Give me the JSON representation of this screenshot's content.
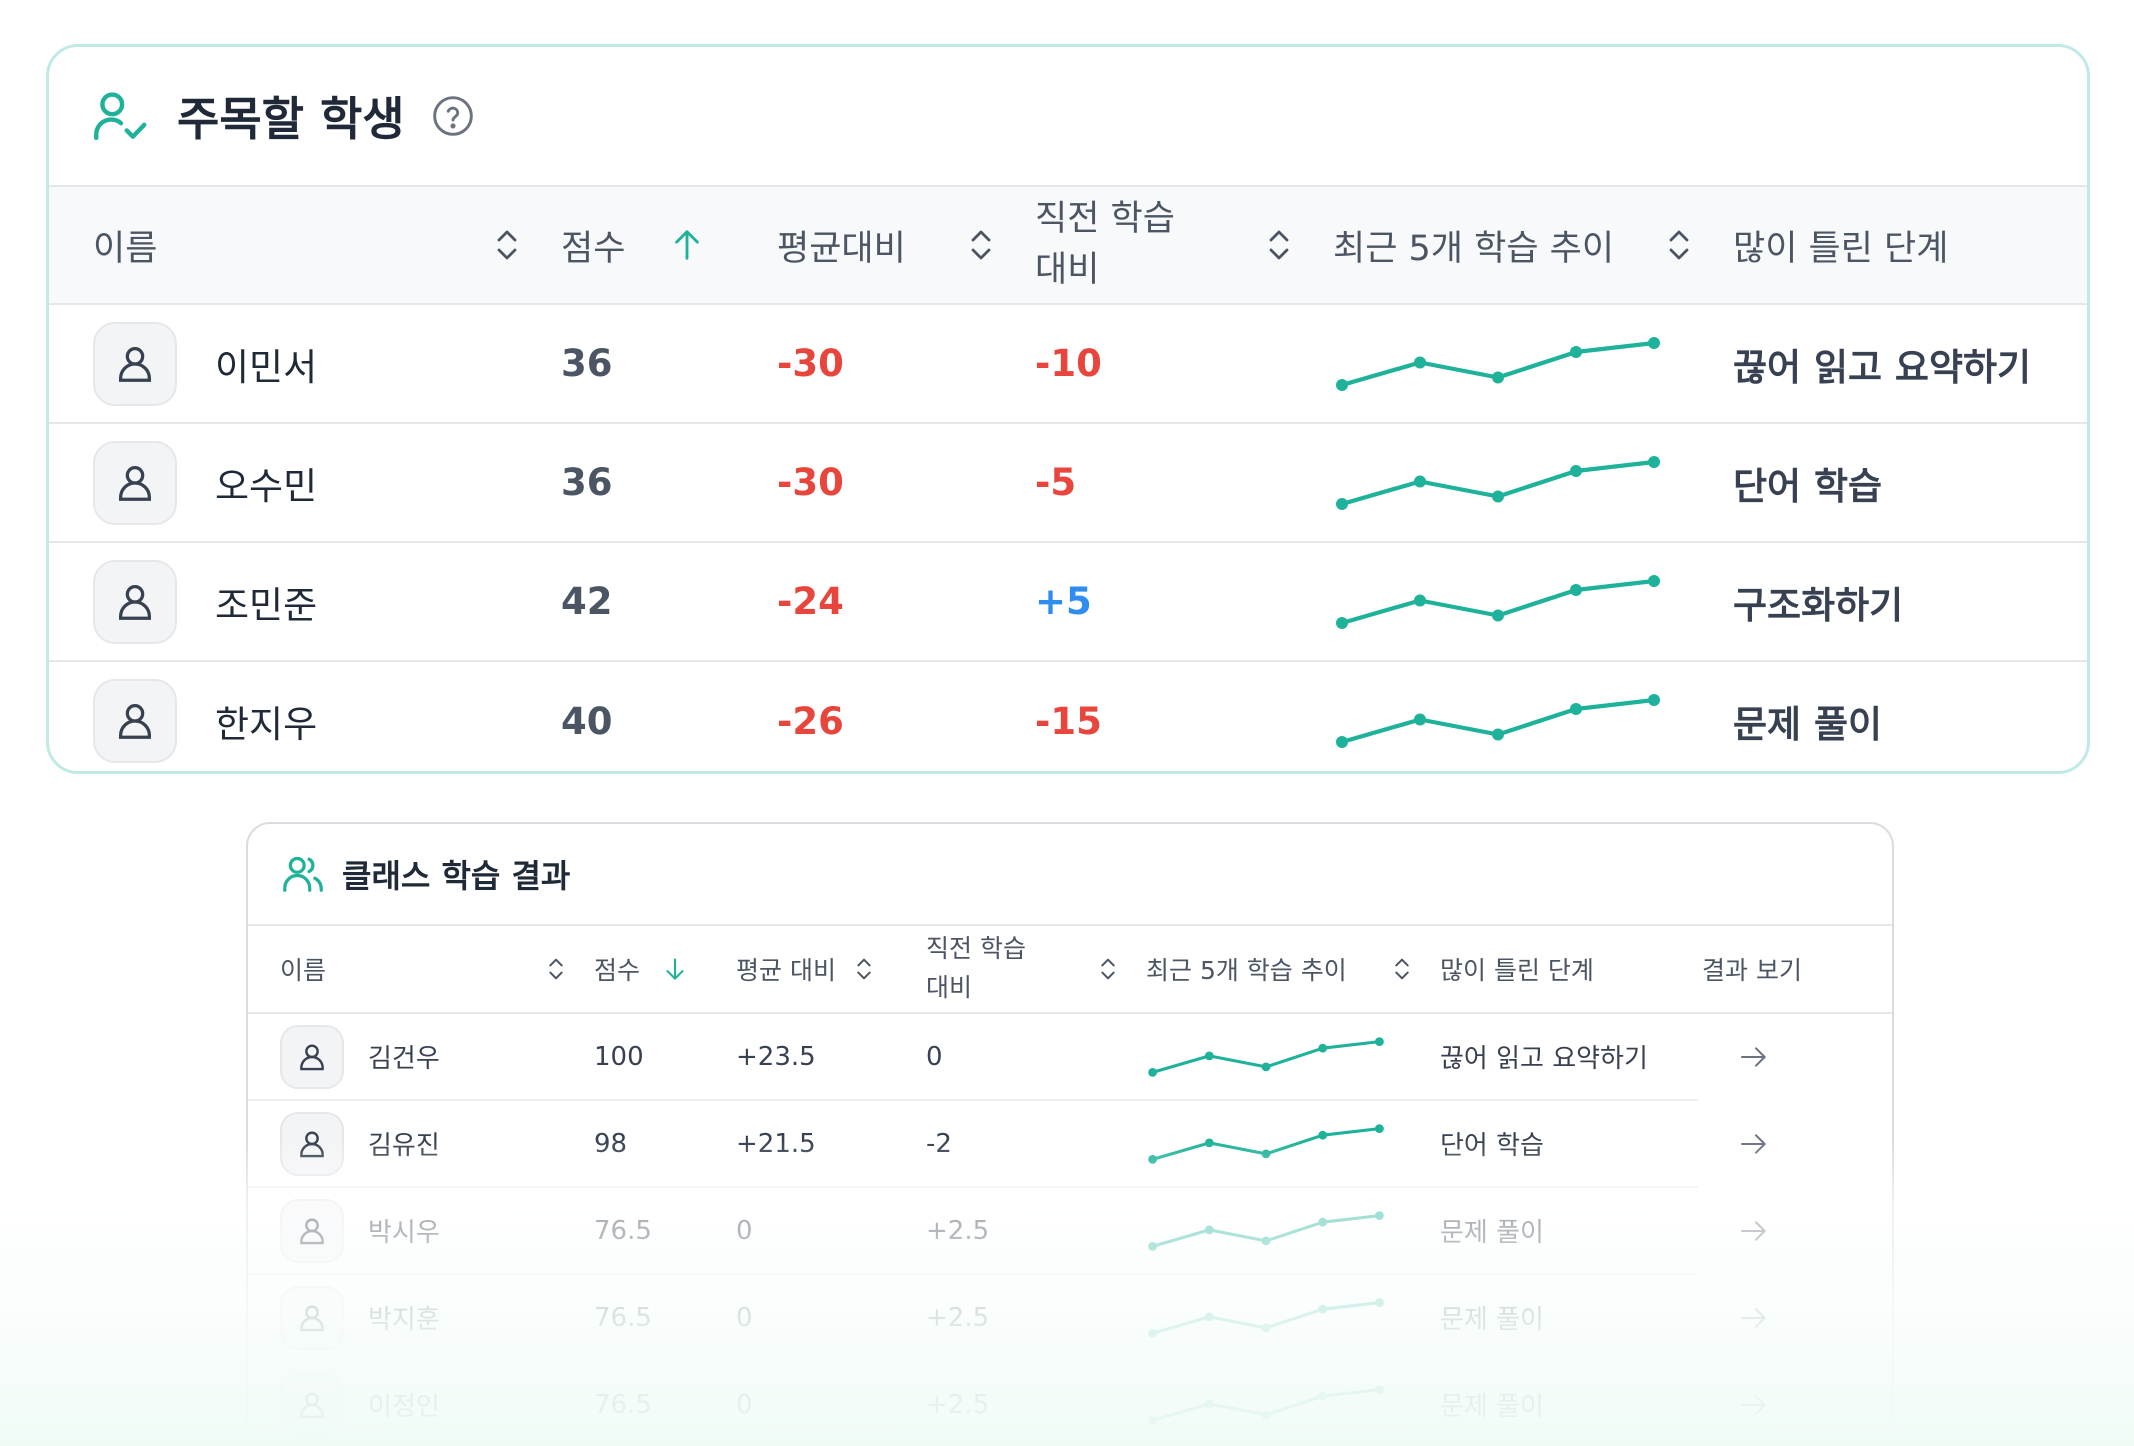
{
  "watch_card": {
    "title": "주목할 학생",
    "columns": {
      "name": "이름",
      "score": "점수",
      "vs_avg": "평균대비",
      "vs_prev": "직전 학습\n대비",
      "trend": "최근 5개 학습 추이",
      "weak_step": "많이 틀린 단계"
    },
    "rows": [
      {
        "name": "이민서",
        "score": "36",
        "vs_avg": "-30",
        "vs_prev": "-10",
        "weak_step": "끊어 읽고 요약하기",
        "trend": [
          40,
          55,
          45,
          62,
          68
        ]
      },
      {
        "name": "오수민",
        "score": "36",
        "vs_avg": "-30",
        "vs_prev": "-5",
        "weak_step": "단어 학습",
        "trend": [
          40,
          55,
          45,
          62,
          68
        ]
      },
      {
        "name": "조민준",
        "score": "42",
        "vs_avg": "-24",
        "vs_prev": "+5",
        "weak_step": "구조화하기",
        "trend": [
          40,
          55,
          45,
          62,
          68
        ]
      },
      {
        "name": "한지우",
        "score": "40",
        "vs_avg": "-26",
        "vs_prev": "-15",
        "weak_step": "문제 풀이",
        "trend": [
          40,
          55,
          45,
          62,
          68
        ]
      }
    ]
  },
  "class_card": {
    "title": "클래스 학습 결과",
    "columns": {
      "name": "이름",
      "score": "점수",
      "vs_avg": "평균 대비",
      "vs_prev": "직전 학습\n대비",
      "trend": "최근 5개 학습 추이",
      "weak_step": "많이 틀린 단계",
      "view": "결과 보기"
    },
    "rows": [
      {
        "name": "김건우",
        "score": "100",
        "vs_avg": "+23.5",
        "vs_prev": "0",
        "weak_step": "끊어 읽고 요약하기",
        "trend": [
          40,
          55,
          45,
          62,
          68
        ]
      },
      {
        "name": "김유진",
        "score": "98",
        "vs_avg": "+21.5",
        "vs_prev": "-2",
        "weak_step": "단어 학습",
        "trend": [
          40,
          55,
          45,
          62,
          68
        ]
      },
      {
        "name": "박시우",
        "score": "76.5",
        "vs_avg": "0",
        "vs_prev": "+2.5",
        "weak_step": "문제 풀이",
        "trend": [
          40,
          55,
          45,
          62,
          68
        ]
      },
      {
        "name": "박지훈",
        "score": "76.5",
        "vs_avg": "0",
        "vs_prev": "+2.5",
        "weak_step": "문제 풀이",
        "trend": [
          40,
          55,
          45,
          62,
          68
        ]
      },
      {
        "name": "이정인",
        "score": "76.5",
        "vs_avg": "0",
        "vs_prev": "+2.5",
        "weak_step": "문제 풀이",
        "trend": [
          40,
          55,
          45,
          62,
          68
        ]
      }
    ]
  },
  "colors": {
    "accent": "#1eb29a",
    "negative": "#e8453c",
    "positive": "#2f8df0",
    "card_border": "#bfeae6"
  },
  "icons": {
    "watch_title": "user-check-icon",
    "help": "question-circle-icon",
    "class_title": "users-icon",
    "row_avatar": "user-icon",
    "view_result": "arrow-right-icon",
    "sort": "sort-icon",
    "sort_asc": "arrow-up-icon",
    "sort_desc": "arrow-down-icon"
  }
}
